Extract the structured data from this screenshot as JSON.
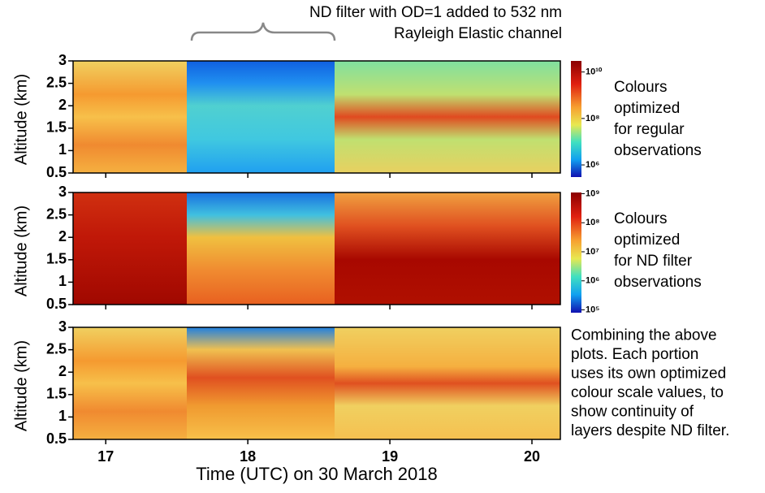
{
  "chart_data": [
    {
      "type": "heatmap",
      "ylabel": "Altitude (km)",
      "ylim": [
        0.5,
        3
      ],
      "yticks": [
        0.5,
        1,
        1.5,
        2,
        2.5,
        3
      ],
      "xlim": [
        16.77,
        20.2
      ],
      "xticks": [
        17,
        18,
        19,
        20
      ],
      "annotation": [
        "ND filter with OD=1 added to 532 nm",
        "Rayleigh Elastic channel"
      ],
      "colorbar": {
        "log": true,
        "clim": [
          300000,
          30000000000
        ],
        "ticks": [
          {
            "value": 10000000000,
            "label": "10¹⁰"
          },
          {
            "value": 100000000,
            "label": "10⁸"
          },
          {
            "value": 1000000,
            "label": "10⁶"
          }
        ]
      },
      "note": [
        "Colours",
        "optimized",
        "for regular",
        "observations"
      ]
    },
    {
      "type": "heatmap",
      "ylabel": "Altitude (km)",
      "ylim": [
        0.5,
        3
      ],
      "yticks": [
        0.5,
        1,
        1.5,
        2,
        2.5,
        3
      ],
      "xlim": [
        16.77,
        20.2
      ],
      "xticks": [
        17,
        18,
        19,
        20
      ],
      "colorbar": {
        "log": true,
        "clim": [
          80000,
          1100000000
        ],
        "ticks": [
          {
            "value": 1000000000,
            "label": "10⁹"
          },
          {
            "value": 100000000,
            "label": "10⁸"
          },
          {
            "value": 10000000,
            "label": "10⁷"
          },
          {
            "value": 1000000,
            "label": "10⁶"
          },
          {
            "value": 100000,
            "label": "10⁵"
          }
        ]
      },
      "note": [
        "Colours",
        "optimized",
        "for ND filter",
        "observations"
      ]
    },
    {
      "type": "heatmap",
      "ylabel": "Altitude (km)",
      "ylim": [
        0.5,
        3
      ],
      "yticks": [
        0.5,
        1,
        1.5,
        2,
        2.5,
        3
      ],
      "xlim": [
        16.77,
        20.2
      ],
      "xticks": [
        17,
        18,
        19,
        20
      ],
      "xlabel": "Time (UTC) on 30 March 2018",
      "note": [
        "Combining the above",
        "plots. Each portion",
        "uses its own optimized",
        "colour scale values, to",
        "show continuity of",
        "layers despite ND filter."
      ]
    }
  ]
}
